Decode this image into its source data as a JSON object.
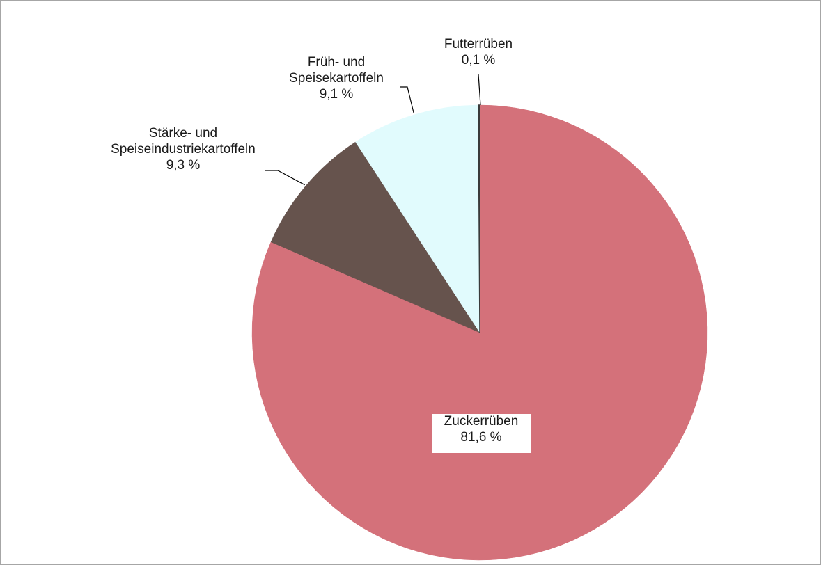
{
  "chart_data": {
    "type": "pie",
    "title": "",
    "slices": [
      {
        "name": "Zuckerrüben",
        "name_lines": [
          "Zuckerrüben"
        ],
        "value": 81.6,
        "label": "81,6 %",
        "color": "#d4717a"
      },
      {
        "name": "Stärke- und Speiseindustriekartoffeln",
        "name_lines": [
          "Stärke- und",
          "Speiseindustriekartoffeln"
        ],
        "value": 9.3,
        "label": "9,3 %",
        "color": "#66534d"
      },
      {
        "name": "Früh- und Speisekartoffeln",
        "name_lines": [
          "Früh- und",
          "Speisekartoffeln"
        ],
        "value": 9.1,
        "label": "9,1 %",
        "color": "#e1fbfd"
      },
      {
        "name": "Futterrüben",
        "name_lines": [
          "Futterrüben"
        ],
        "value": 0.1,
        "label": "0,1 %",
        "color": "#3a3a3a"
      }
    ],
    "start_angle": "12 o'clock",
    "direction": "clockwise",
    "legend": "none",
    "data_labels": "category name and percentage"
  }
}
